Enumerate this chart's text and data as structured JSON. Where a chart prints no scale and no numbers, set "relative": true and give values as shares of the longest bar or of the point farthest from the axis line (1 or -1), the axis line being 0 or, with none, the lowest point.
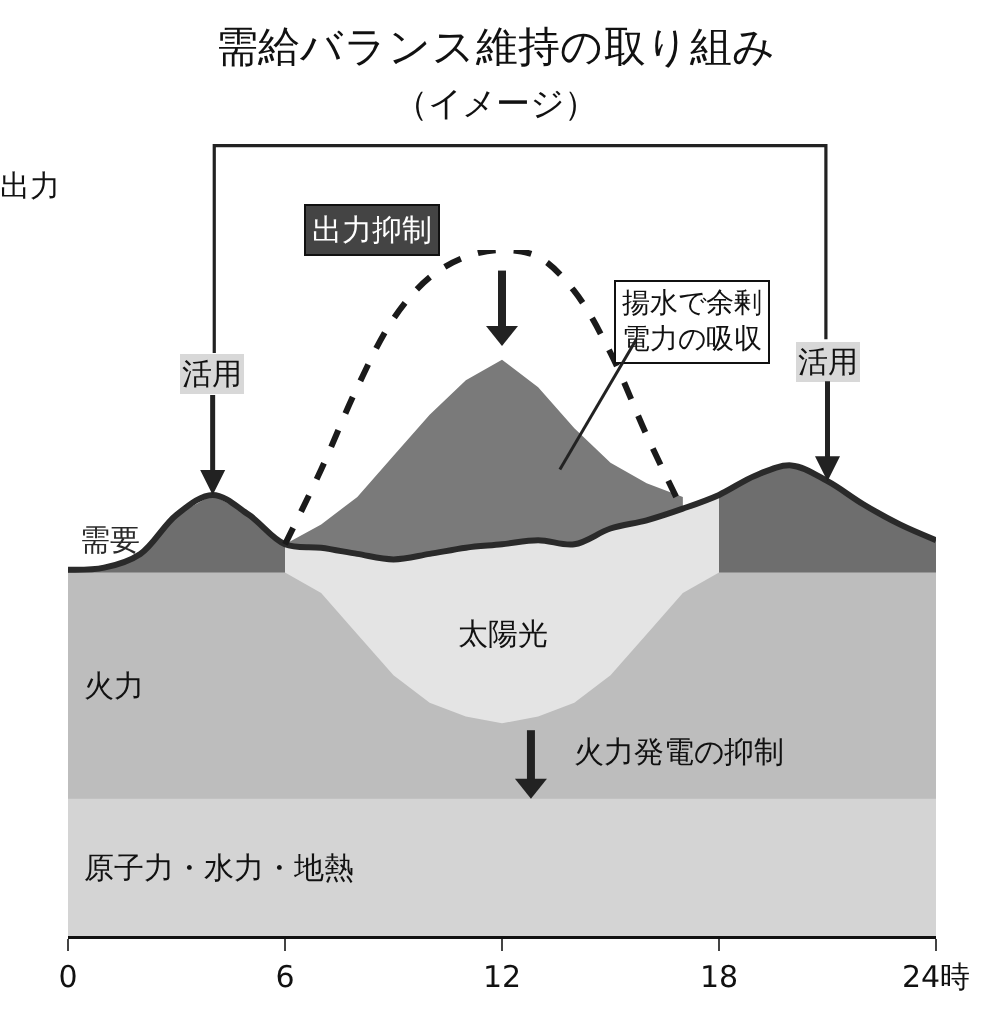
{
  "chart_data": {
    "type": "area",
    "title": "需給バランス維持の取り組み",
    "subtitle": "（イメージ）",
    "ylabel": "出力",
    "relative": true,
    "x": [
      0,
      1,
      2,
      3,
      4,
      5,
      6,
      7,
      8,
      9,
      10,
      11,
      12,
      13,
      14,
      15,
      16,
      17,
      18,
      19,
      20,
      21,
      22,
      23,
      24
    ],
    "xlim": [
      0,
      24
    ],
    "xticks": [
      0,
      6,
      12,
      18,
      {
        "value": 24,
        "label": "24時"
      }
    ],
    "grid": false,
    "legend": false,
    "marker": "none",
    "series": [
      {
        "color": "#7a7a7a",
        "x": [
          6,
          7,
          8,
          9,
          10,
          11,
          12,
          13,
          14,
          15,
          16,
          17
        ],
        "values": [
          0.571,
          0.6,
          0.64,
          0.7,
          0.76,
          0.81,
          0.84,
          0.8,
          0.74,
          0.69,
          0.66,
          0.64
        ]
      },
      {
        "color": "#6e6e6e",
        "x": [
          0,
          1,
          2,
          3,
          4,
          5,
          6
        ],
        "values": [
          0.534,
          0.537,
          0.557,
          0.614,
          0.643,
          0.614,
          0.571
        ]
      },
      {
        "color": "#6e6e6e",
        "x": [
          18,
          19,
          20,
          21,
          22,
          23,
          24
        ],
        "values": [
          0.643,
          0.671,
          0.686,
          0.663,
          0.629,
          0.6,
          0.577
        ]
      },
      {
        "name": "太陽光",
        "color": "#e4e4e4",
        "x": [
          6,
          7,
          8,
          9,
          10,
          11,
          12,
          13,
          14,
          15,
          16,
          17,
          18
        ],
        "values": [
          0.571,
          0.566,
          0.557,
          0.549,
          0.557,
          0.566,
          0.571,
          0.577,
          0.571,
          0.594,
          0.606,
          0.623,
          0.643
        ]
      },
      {
        "name": "火力",
        "color": "#bdbdbd",
        "values": [
          0.53,
          0.53,
          0.53,
          0.53,
          0.53,
          0.53,
          0.53,
          0.5,
          0.44,
          0.38,
          0.34,
          0.32,
          0.31,
          0.32,
          0.34,
          0.38,
          0.44,
          0.5,
          0.53,
          0.53,
          0.53,
          0.53,
          0.53,
          0.53,
          0.53
        ]
      },
      {
        "name": "原子力・水力・地熱",
        "color": "#d4d4d4",
        "values": [
          0.2,
          0.2,
          0.2,
          0.2,
          0.2,
          0.2,
          0.2,
          0.2,
          0.2,
          0.2,
          0.2,
          0.2,
          0.2,
          0.2,
          0.2,
          0.2,
          0.2,
          0.2,
          0.2,
          0.2,
          0.2,
          0.2,
          0.2,
          0.2,
          0.2
        ]
      },
      {
        "name": "需要",
        "type": "line",
        "color": "#2a2a2a",
        "line_style": "solid",
        "values": [
          0.534,
          0.537,
          0.557,
          0.614,
          0.643,
          0.614,
          0.571,
          0.566,
          0.557,
          0.549,
          0.557,
          0.566,
          0.571,
          0.577,
          0.571,
          0.594,
          0.606,
          0.623,
          0.643,
          0.671,
          0.686,
          0.663,
          0.629,
          0.6,
          0.577
        ]
      },
      {
        "type": "line",
        "color": "#1a1a1a",
        "line_style": "dashed",
        "x": [
          6,
          7,
          8,
          9,
          10,
          11,
          12,
          13,
          14,
          15,
          16,
          17
        ],
        "values": [
          0.571,
          0.68,
          0.8,
          0.9,
          0.96,
          0.99,
          1,
          0.99,
          0.94,
          0.85,
          0.73,
          0.62
        ]
      }
    ],
    "annotations": [
      "出力抑制",
      {
        "text": "活用",
        "x": 4,
        "y": 0.643
      },
      {
        "text": "活用",
        "x": 21,
        "y": 0.663
      },
      "揚水で余剰電力の吸収",
      "火力発電の抑制"
    ]
  }
}
